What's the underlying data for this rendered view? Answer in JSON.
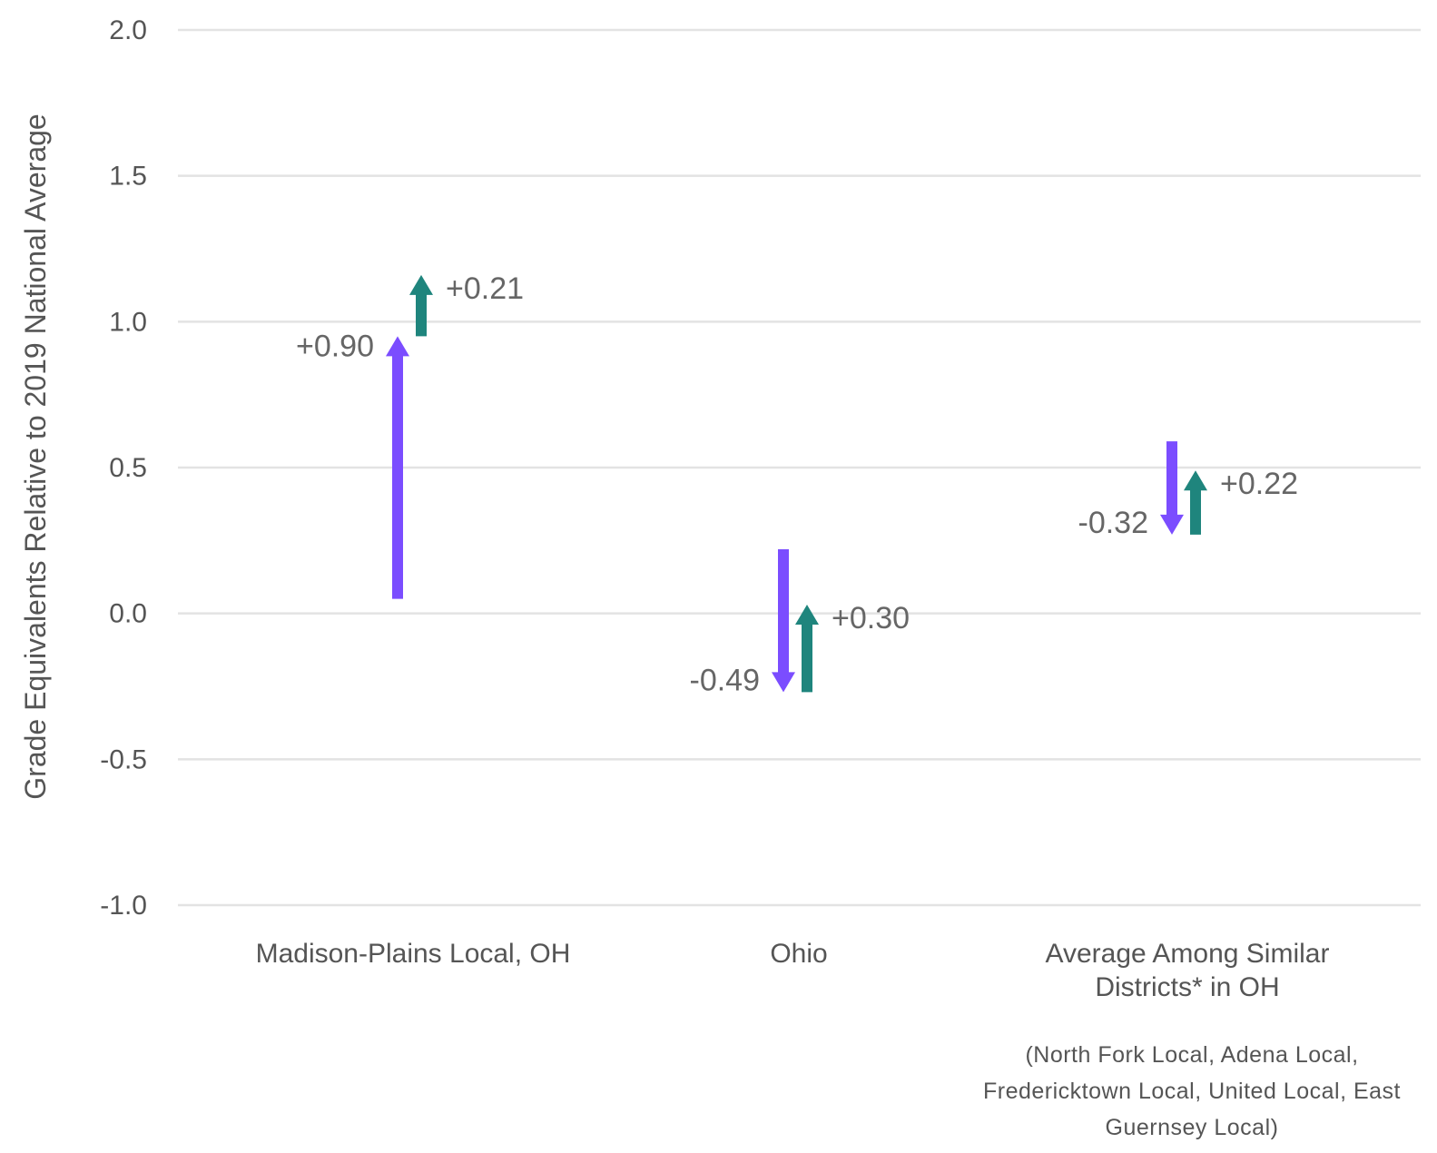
{
  "chart_data": {
    "type": "arrow",
    "ylabel": "Grade Equivalents Relative to 2019 National Average",
    "ylim": [
      -1.0,
      2.0
    ],
    "yticks": [
      2.0,
      1.5,
      1.0,
      0.5,
      0.0,
      -0.5,
      -1.0
    ],
    "ytick_labels": [
      "2.0",
      "1.5",
      "1.0",
      "0.5",
      "0.0",
      "-0.5",
      "-1.0"
    ],
    "grid": true,
    "colors": {
      "first_change": "#7b4dff",
      "second_change": "#1f857d"
    },
    "categories": [
      {
        "label_lines": [
          "Madison-Plains Local, OH"
        ],
        "note_lines": [],
        "arrows": [
          {
            "series": "first_change",
            "from": 0.05,
            "to": 0.95,
            "label": "+0.90"
          },
          {
            "series": "second_change",
            "from": 0.95,
            "to": 1.16,
            "label": "+0.21"
          }
        ]
      },
      {
        "label_lines": [
          "Ohio"
        ],
        "note_lines": [],
        "arrows": [
          {
            "series": "first_change",
            "from": 0.22,
            "to": -0.27,
            "label": "-0.49"
          },
          {
            "series": "second_change",
            "from": -0.27,
            "to": 0.03,
            "label": "+0.30"
          }
        ]
      },
      {
        "label_lines": [
          "Average Among Similar",
          "Districts* in OH"
        ],
        "note_lines": [
          "(North Fork Local, Adena Local,",
          "Fredericktown Local, United Local, East",
          "Guernsey Local)"
        ],
        "arrows": [
          {
            "series": "first_change",
            "from": 0.59,
            "to": 0.27,
            "label": "-0.32"
          },
          {
            "series": "second_change",
            "from": 0.27,
            "to": 0.49,
            "label": "+0.22"
          }
        ]
      }
    ]
  }
}
